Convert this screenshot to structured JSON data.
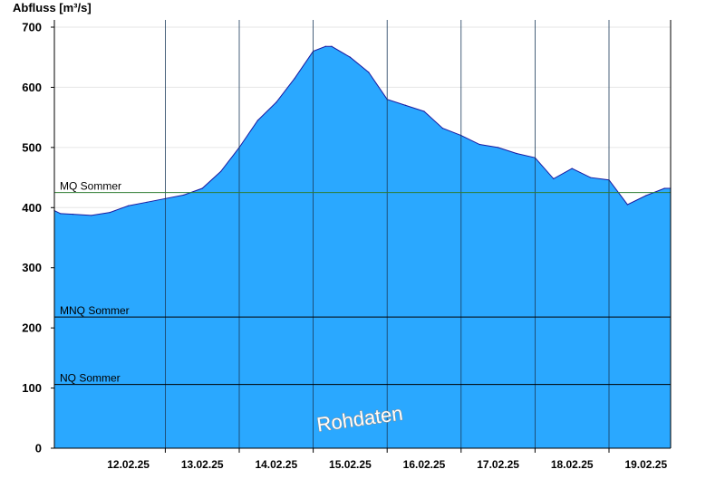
{
  "chart_data": {
    "type": "area",
    "ylabel": "Abfluss [m³/s]",
    "ylim": [
      0,
      700
    ],
    "yticks": [
      0,
      100,
      200,
      300,
      400,
      500,
      600,
      700
    ],
    "xlim": [
      "2025-02-11T12:00",
      "2025-02-19T20:00"
    ],
    "xticks": [
      {
        "label": "12.02.25",
        "x": "2025-02-12T12:00"
      },
      {
        "label": "13.02.25",
        "x": "2025-02-13T12:00"
      },
      {
        "label": "14.02.25",
        "x": "2025-02-14T12:00"
      },
      {
        "label": "15.02.25",
        "x": "2025-02-15T12:00"
      },
      {
        "label": "16.02.25",
        "x": "2025-02-16T12:00"
      },
      {
        "label": "17.02.25",
        "x": "2025-02-17T12:00"
      },
      {
        "label": "18.02.25",
        "x": "2025-02-18T12:00"
      },
      {
        "label": "19.02.25",
        "x": "2025-02-19T12:00"
      }
    ],
    "day_gridlines": [
      "2025-02-13T00:00",
      "2025-02-14T00:00",
      "2025-02-15T00:00",
      "2025-02-16T00:00",
      "2025-02-17T00:00",
      "2025-02-18T00:00",
      "2025-02-19T00:00"
    ],
    "grid": true,
    "series": [
      {
        "color": "#2aa8ff",
        "line_color": "#1a1aa0",
        "points": [
          [
            "2025-02-11T12:00",
            395
          ],
          [
            "2025-02-11T14:00",
            390
          ],
          [
            "2025-02-11T18:00",
            389
          ],
          [
            "2025-02-12T00:00",
            387
          ],
          [
            "2025-02-12T06:00",
            392
          ],
          [
            "2025-02-12T12:00",
            403
          ],
          [
            "2025-02-12T18:00",
            409
          ],
          [
            "2025-02-13T00:00",
            415
          ],
          [
            "2025-02-13T06:00",
            421
          ],
          [
            "2025-02-13T12:00",
            432
          ],
          [
            "2025-02-13T18:00",
            460
          ],
          [
            "2025-02-14T00:00",
            500
          ],
          [
            "2025-02-14T06:00",
            545
          ],
          [
            "2025-02-14T12:00",
            575
          ],
          [
            "2025-02-14T18:00",
            615
          ],
          [
            "2025-02-15T00:00",
            660
          ],
          [
            "2025-02-15T04:00",
            668
          ],
          [
            "2025-02-15T06:00",
            668
          ],
          [
            "2025-02-15T12:00",
            650
          ],
          [
            "2025-02-15T18:00",
            625
          ],
          [
            "2025-02-16T00:00",
            580
          ],
          [
            "2025-02-16T06:00",
            570
          ],
          [
            "2025-02-16T12:00",
            560
          ],
          [
            "2025-02-16T18:00",
            532
          ],
          [
            "2025-02-17T00:00",
            520
          ],
          [
            "2025-02-17T06:00",
            505
          ],
          [
            "2025-02-17T12:00",
            500
          ],
          [
            "2025-02-17T18:00",
            490
          ],
          [
            "2025-02-18T00:00",
            483
          ],
          [
            "2025-02-18T06:00",
            448
          ],
          [
            "2025-02-18T12:00",
            465
          ],
          [
            "2025-02-18T18:00",
            450
          ],
          [
            "2025-02-19T00:00",
            446
          ],
          [
            "2025-02-19T06:00",
            405
          ],
          [
            "2025-02-19T12:00",
            420
          ],
          [
            "2025-02-19T18:00",
            432
          ],
          [
            "2025-02-19T20:00",
            432
          ]
        ]
      }
    ],
    "reference_lines": [
      {
        "label": "MQ Sommer",
        "value": 425,
        "color": "#2e7d32"
      },
      {
        "label": "MNQ Sommer",
        "value": 218,
        "color": "#000000"
      },
      {
        "label": "NQ Sommer",
        "value": 106,
        "color": "#000000"
      }
    ],
    "watermark": "Rohdaten"
  }
}
